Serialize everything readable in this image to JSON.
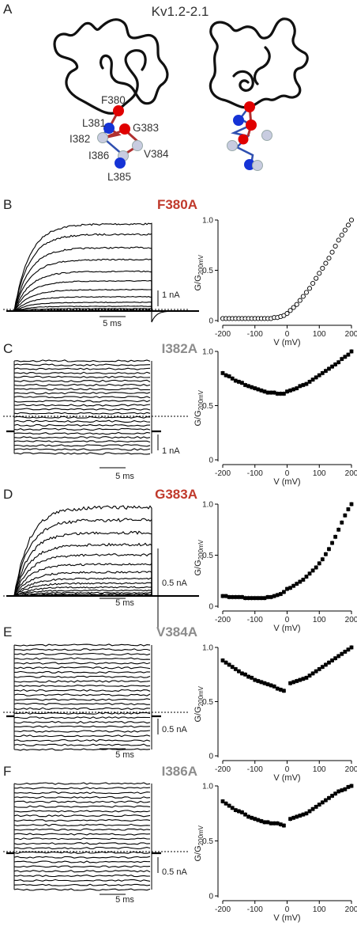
{
  "figure": {
    "panel_letters": [
      "A",
      "B",
      "C",
      "D",
      "E",
      "F"
    ],
    "structure": {
      "title": "Kv1.2-2.1",
      "residues": [
        "F380",
        "L381",
        "I382",
        "G383",
        "V384",
        "L385",
        "I386"
      ]
    },
    "scalebar_time": "5 ms",
    "colors": {
      "red_mutant": "#c0392b",
      "gray_mutant": "#8c8c8c",
      "trace": "#000000",
      "atom_red": "#e00000",
      "atom_blue": "#1533d6",
      "atom_white": "#c8cce0"
    }
  },
  "chart_data": [
    {
      "type": "scatter",
      "panel": "B",
      "mutant": "F380A",
      "mutant_color": "red",
      "current_scalebar": "1 nA",
      "xlabel": "V (mV)",
      "ylabel_main": "G/G",
      "ylabel_sub": "200mV",
      "xlim": [
        -200,
        200
      ],
      "ylim": [
        0,
        1
      ],
      "xticks": [
        "-200",
        "-100",
        "0",
        "100",
        "200"
      ],
      "yticks": [
        "0",
        "0.5",
        "1.0"
      ],
      "x": [
        -200,
        -190,
        -180,
        -170,
        -160,
        -150,
        -140,
        -130,
        -120,
        -110,
        -100,
        -90,
        -80,
        -70,
        -60,
        -50,
        -40,
        -30,
        -20,
        -10,
        0,
        10,
        20,
        30,
        40,
        50,
        60,
        70,
        80,
        90,
        100,
        110,
        120,
        130,
        140,
        150,
        160,
        170,
        180,
        190,
        200
      ],
      "y": [
        0.02,
        0.02,
        0.02,
        0.02,
        0.02,
        0.02,
        0.02,
        0.02,
        0.02,
        0.02,
        0.02,
        0.02,
        0.02,
        0.02,
        0.02,
        0.02,
        0.03,
        0.03,
        0.04,
        0.05,
        0.07,
        0.1,
        0.13,
        0.16,
        0.2,
        0.24,
        0.28,
        0.32,
        0.37,
        0.42,
        0.47,
        0.52,
        0.57,
        0.62,
        0.68,
        0.74,
        0.8,
        0.85,
        0.9,
        0.95,
        1.0
      ]
    },
    {
      "type": "scatter",
      "panel": "C",
      "mutant": "I382A",
      "mutant_color": "gray",
      "current_scalebar": "1 nA",
      "xlabel": "V (mV)",
      "ylabel_main": "G/G",
      "ylabel_sub": "200mV",
      "xlim": [
        -200,
        200
      ],
      "ylim": [
        0,
        1
      ],
      "xticks": [
        "-200",
        "-100",
        "0",
        "100",
        "200"
      ],
      "yticks": [
        "0",
        "0.5",
        "1.0"
      ],
      "x": [
        -200,
        -190,
        -180,
        -170,
        -160,
        -150,
        -140,
        -130,
        -120,
        -110,
        -100,
        -90,
        -80,
        -70,
        -60,
        -50,
        -40,
        -30,
        -20,
        -10,
        0,
        10,
        20,
        30,
        40,
        50,
        60,
        70,
        80,
        90,
        100,
        110,
        120,
        130,
        140,
        150,
        160,
        170,
        180,
        190,
        200
      ],
      "y": [
        0.8,
        0.78,
        0.77,
        0.75,
        0.73,
        0.72,
        0.71,
        0.69,
        0.68,
        0.67,
        0.66,
        0.65,
        0.64,
        0.63,
        0.62,
        0.62,
        0.62,
        0.61,
        0.61,
        0.61,
        0.63,
        0.64,
        0.65,
        0.66,
        0.68,
        0.69,
        0.7,
        0.72,
        0.74,
        0.76,
        0.78,
        0.8,
        0.82,
        0.84,
        0.86,
        0.88,
        0.9,
        0.93,
        0.95,
        0.97,
        1.0
      ]
    },
    {
      "type": "scatter",
      "panel": "D",
      "mutant": "G383A",
      "mutant_color": "red",
      "current_scalebar": "0.5 nA",
      "xlabel": "V (mV)",
      "ylabel_main": "G/G",
      "ylabel_sub": "200mV",
      "xlim": [
        -200,
        200
      ],
      "ylim": [
        0,
        1
      ],
      "xticks": [
        "-200",
        "-100",
        "0",
        "100",
        "200"
      ],
      "yticks": [
        "0",
        "0.5",
        "1.0"
      ],
      "x": [
        -200,
        -190,
        -180,
        -170,
        -160,
        -150,
        -140,
        -130,
        -120,
        -110,
        -100,
        -90,
        -80,
        -70,
        -60,
        -50,
        -40,
        -30,
        -20,
        -10,
        0,
        10,
        20,
        30,
        40,
        50,
        60,
        70,
        80,
        90,
        100,
        110,
        120,
        130,
        140,
        150,
        160,
        170,
        180,
        190,
        200
      ],
      "y": [
        0.1,
        0.1,
        0.09,
        0.09,
        0.09,
        0.09,
        0.09,
        0.08,
        0.08,
        0.08,
        0.08,
        0.08,
        0.08,
        0.08,
        0.09,
        0.09,
        0.1,
        0.11,
        0.12,
        0.14,
        0.17,
        0.18,
        0.2,
        0.22,
        0.24,
        0.26,
        0.29,
        0.32,
        0.35,
        0.38,
        0.42,
        0.46,
        0.51,
        0.56,
        0.62,
        0.68,
        0.75,
        0.82,
        0.89,
        0.95,
        1.0
      ]
    },
    {
      "type": "scatter",
      "panel": "E",
      "mutant": "V384A",
      "mutant_color": "gray",
      "current_scalebar": "0.5 nA",
      "xlabel": "V (mV)",
      "ylabel_main": "G/G",
      "ylabel_sub": "200mV",
      "xlim": [
        -200,
        200
      ],
      "ylim": [
        0,
        1
      ],
      "xticks": [
        "-200",
        "-100",
        "0",
        "100",
        "200"
      ],
      "yticks": [
        "0",
        "0.5",
        "1.0"
      ],
      "x": [
        -200,
        -190,
        -180,
        -170,
        -160,
        -150,
        -140,
        -130,
        -120,
        -110,
        -100,
        -90,
        -80,
        -70,
        -60,
        -50,
        -40,
        -30,
        -20,
        -10,
        10,
        20,
        30,
        40,
        50,
        60,
        70,
        80,
        90,
        100,
        110,
        120,
        130,
        140,
        150,
        160,
        170,
        180,
        190,
        200
      ],
      "y": [
        0.88,
        0.86,
        0.84,
        0.82,
        0.8,
        0.78,
        0.76,
        0.75,
        0.73,
        0.72,
        0.7,
        0.69,
        0.68,
        0.67,
        0.66,
        0.65,
        0.64,
        0.62,
        0.61,
        0.6,
        0.67,
        0.68,
        0.69,
        0.7,
        0.71,
        0.72,
        0.74,
        0.76,
        0.78,
        0.8,
        0.82,
        0.84,
        0.86,
        0.88,
        0.9,
        0.92,
        0.94,
        0.96,
        0.98,
        1.0
      ]
    },
    {
      "type": "scatter",
      "panel": "F",
      "mutant": "I386A",
      "mutant_color": "gray",
      "current_scalebar": "0.5 nA",
      "xlabel": "V (mV)",
      "ylabel_main": "G/G",
      "ylabel_sub": "200mV",
      "xlim": [
        -200,
        200
      ],
      "ylim": [
        0,
        1
      ],
      "xticks": [
        "-200",
        "-100",
        "0",
        "100",
        "200"
      ],
      "yticks": [
        "0",
        "0.5",
        "1.0"
      ],
      "x": [
        -200,
        -190,
        -180,
        -170,
        -160,
        -150,
        -140,
        -130,
        -120,
        -110,
        -100,
        -90,
        -80,
        -70,
        -60,
        -50,
        -40,
        -30,
        -20,
        -10,
        10,
        20,
        30,
        40,
        50,
        60,
        70,
        80,
        90,
        100,
        110,
        120,
        130,
        140,
        150,
        160,
        170,
        180,
        190,
        200
      ],
      "y": [
        0.86,
        0.84,
        0.82,
        0.8,
        0.78,
        0.77,
        0.76,
        0.74,
        0.72,
        0.71,
        0.7,
        0.69,
        0.68,
        0.67,
        0.67,
        0.66,
        0.66,
        0.66,
        0.65,
        0.64,
        0.7,
        0.71,
        0.72,
        0.73,
        0.74,
        0.75,
        0.77,
        0.79,
        0.81,
        0.83,
        0.85,
        0.87,
        0.89,
        0.91,
        0.93,
        0.95,
        0.96,
        0.97,
        0.99,
        1.0
      ]
    }
  ]
}
